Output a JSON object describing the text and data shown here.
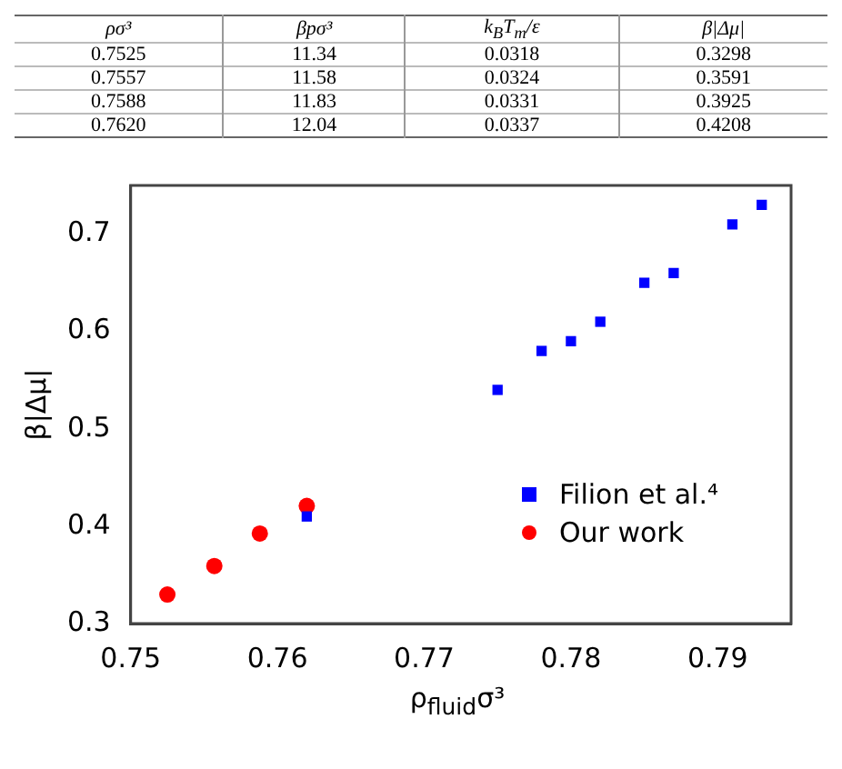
{
  "chart_data": {
    "type": "scatter",
    "xlabel": "ρ$_{fluid}$σ³",
    "ylabel": "β|Δμ|",
    "xlim": [
      0.75,
      0.795
    ],
    "xticks": [
      0.75,
      0.76,
      0.77,
      0.78,
      0.79
    ],
    "ylim": [
      0.3,
      0.75
    ],
    "yticks": [
      0.3,
      0.4,
      0.5,
      0.6,
      0.7
    ],
    "grid": false,
    "legend": "right",
    "series": [
      {
        "name": "Filion et al.⁴",
        "color": "#0000ff",
        "marker": "square",
        "x": [
          0.762,
          0.775,
          0.778,
          0.78,
          0.782,
          0.785,
          0.787,
          0.791,
          0.793
        ],
        "values": [
          0.41,
          0.54,
          0.58,
          0.59,
          0.61,
          0.65,
          0.66,
          0.71,
          0.73
        ]
      },
      {
        "name": "Our work",
        "color": "#ff0000",
        "marker": "circle",
        "x": [
          0.7525,
          0.7557,
          0.7588,
          0.762
        ],
        "values": [
          0.3298,
          0.3591,
          0.3925,
          0.4208
        ]
      }
    ],
    "annotations": [
      "ρσ³",
      "βpσ³",
      "k$_{B}$T$_{m}$/ε",
      "β|Δμ|",
      "0.7525",
      "11.34",
      "0.0318",
      "0.3298",
      "0.7557",
      "11.58",
      "0.0324",
      "0.3591",
      "0.7588",
      "11.83",
      "0.0331",
      "0.3925",
      "0.7620",
      "12.04",
      "0.0337",
      "0.4208"
    ]
  }
}
